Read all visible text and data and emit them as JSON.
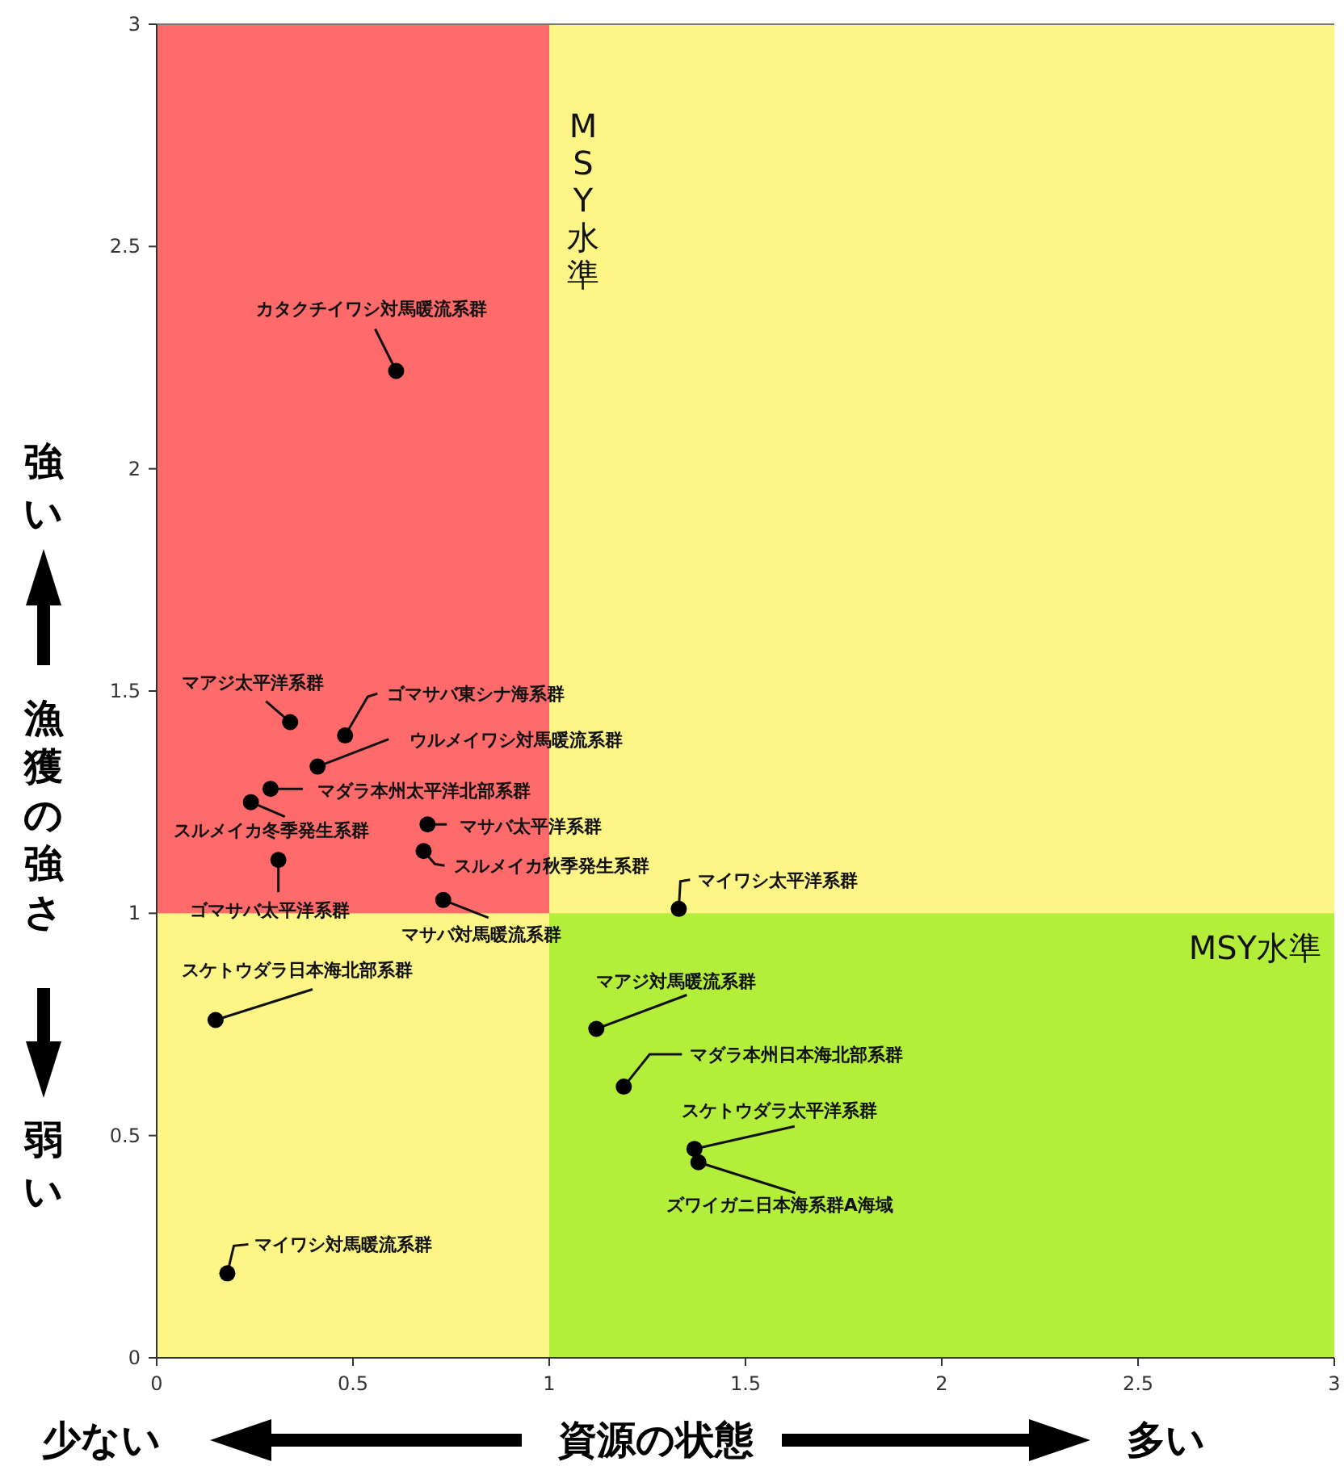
{
  "chart_data": {
    "type": "scatter",
    "xlabel": "資源の状態",
    "ylabel": "漁獲の強さ",
    "xlim": [
      0,
      3
    ],
    "ylim": [
      0,
      3
    ],
    "xticks": [
      0,
      0.5,
      1,
      1.5,
      2,
      2.5,
      3
    ],
    "yticks": [
      0,
      0.5,
      1,
      1.5,
      2,
      2.5,
      3
    ],
    "grid": false,
    "marker": "circle",
    "x": [
      0.61,
      0.34,
      0.48,
      0.41,
      0.29,
      0.24,
      0.69,
      0.68,
      0.31,
      0.73,
      1.33,
      0.15,
      1.12,
      1.19,
      1.37,
      1.38,
      0.18
    ],
    "series": [
      {
        "color": "#000000",
        "values": [
          2.22,
          1.43,
          1.4,
          1.33,
          1.28,
          1.25,
          1.2,
          1.14,
          1.12,
          1.03,
          1.01,
          0.76,
          0.74,
          0.61,
          0.47,
          0.44,
          0.19
        ]
      }
    ],
    "bands": [
      {
        "axis": "x",
        "from": 0,
        "to": 3,
        "color": "#fdf585"
      },
      {
        "axis": "y",
        "from": 1,
        "to": 3,
        "color": "#ff6b6b"
      },
      {
        "axis": "x",
        "from": 1,
        "to": 3,
        "color": "#b3ee3a"
      }
    ],
    "annotations": [
      {
        "text": "カタクチイワシ対馬暖流系群",
        "x": 0.61,
        "y": 2.22
      },
      {
        "text": "マアジ太平洋系群",
        "x": 0.34,
        "y": 1.43
      },
      {
        "text": "ゴマサバ東シナ海系群",
        "x": 0.48,
        "y": 1.4
      },
      {
        "text": "ウルメイワシ対馬暖流系群",
        "x": 0.41,
        "y": 1.33
      },
      {
        "text": "マダラ本州太平洋北部系群",
        "x": 0.29,
        "y": 1.28
      },
      {
        "text": "スルメイカ冬季発生系群",
        "x": 0.24,
        "y": 1.25
      },
      {
        "text": "マサバ太平洋系群",
        "x": 0.69,
        "y": 1.2
      },
      {
        "text": "スルメイカ秋季発生系群",
        "x": 0.68,
        "y": 1.14
      },
      {
        "text": "ゴマサバ太平洋系群",
        "x": 0.31,
        "y": 1.12
      },
      {
        "text": "マサバ対馬暖流系群",
        "x": 0.73,
        "y": 1.03
      },
      {
        "text": "マイワシ太平洋系群",
        "x": 1.33,
        "y": 1.01
      },
      {
        "text": "スケトウダラ日本海北部系群",
        "x": 0.15,
        "y": 0.76
      },
      {
        "text": "マアジ対馬暖流系群",
        "x": 1.12,
        "y": 0.74
      },
      {
        "text": "マダラ本州日本海北部系群",
        "x": 1.19,
        "y": 0.61
      },
      {
        "text": "スケトウダラ太平洋系群",
        "x": 1.37,
        "y": 0.47
      },
      {
        "text": "ズワイガニ日本海系群A海域",
        "x": 1.38,
        "y": 0.44
      },
      {
        "text": "マイワシ対馬暖流系群",
        "x": 0.18,
        "y": 0.19
      },
      "少ない",
      "多い",
      "強い",
      "弱い",
      "MSY水準",
      "MSY水準"
    ]
  }
}
